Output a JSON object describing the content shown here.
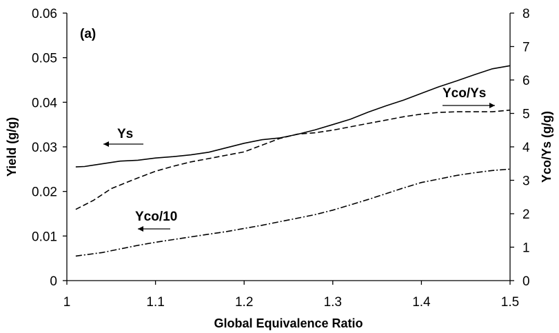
{
  "chart_data": {
    "type": "line",
    "panel_label": "(a)",
    "xlabel": "Global Equivalence Ratio",
    "ylabel_left": "Yield (g/g)",
    "ylabel_right": "Yco/Ys (g/g)",
    "xlim": [
      1.0,
      1.5
    ],
    "ylim_left": [
      0,
      0.06
    ],
    "ylim_right": [
      0,
      8
    ],
    "x_ticks": [
      "1",
      "1.1",
      "1.2",
      "1.3",
      "1.4",
      "1.5"
    ],
    "y_left_ticks": [
      "0",
      "0.01",
      "0.02",
      "0.03",
      "0.04",
      "0.05",
      "0.06"
    ],
    "y_right_ticks": [
      "0",
      "1",
      "2",
      "3",
      "4",
      "5",
      "6",
      "7",
      "8"
    ],
    "grid": false,
    "legend": "none",
    "series": [
      {
        "name": "Ys",
        "axis": "left",
        "style": "solid",
        "x": [
          1.01,
          1.02,
          1.04,
          1.06,
          1.08,
          1.1,
          1.12,
          1.14,
          1.16,
          1.18,
          1.2,
          1.22,
          1.24,
          1.26,
          1.28,
          1.3,
          1.32,
          1.34,
          1.36,
          1.38,
          1.4,
          1.42,
          1.44,
          1.46,
          1.48,
          1.5
        ],
        "values": [
          0.0255,
          0.0256,
          0.0262,
          0.0268,
          0.027,
          0.0275,
          0.0278,
          0.0282,
          0.0288,
          0.0298,
          0.0308,
          0.0316,
          0.032,
          0.0328,
          0.0338,
          0.035,
          0.0362,
          0.0378,
          0.0392,
          0.0405,
          0.042,
          0.0435,
          0.0448,
          0.0462,
          0.0475,
          0.0482
        ]
      },
      {
        "name": "Yco/Ys",
        "axis": "right",
        "style": "dashed",
        "x": [
          1.01,
          1.03,
          1.05,
          1.08,
          1.1,
          1.12,
          1.14,
          1.16,
          1.18,
          1.2,
          1.22,
          1.24,
          1.26,
          1.28,
          1.3,
          1.32,
          1.34,
          1.36,
          1.38,
          1.4,
          1.42,
          1.44,
          1.46,
          1.48,
          1.5
        ],
        "values": [
          2.13,
          2.4,
          2.75,
          3.07,
          3.27,
          3.42,
          3.55,
          3.65,
          3.75,
          3.85,
          4.05,
          4.25,
          4.38,
          4.42,
          4.5,
          4.6,
          4.7,
          4.8,
          4.9,
          4.98,
          5.03,
          5.05,
          5.05,
          5.05,
          5.1
        ]
      },
      {
        "name": "Yco/10",
        "axis": "left",
        "style": "dashdot",
        "x": [
          1.01,
          1.04,
          1.06,
          1.08,
          1.1,
          1.12,
          1.14,
          1.16,
          1.18,
          1.2,
          1.22,
          1.24,
          1.26,
          1.28,
          1.3,
          1.32,
          1.34,
          1.36,
          1.38,
          1.4,
          1.42,
          1.44,
          1.46,
          1.48,
          1.5
        ],
        "values": [
          0.0055,
          0.0063,
          0.0071,
          0.0079,
          0.0086,
          0.0092,
          0.0098,
          0.0104,
          0.011,
          0.0117,
          0.0124,
          0.0132,
          0.014,
          0.0148,
          0.0158,
          0.017,
          0.0182,
          0.0195,
          0.0208,
          0.022,
          0.0228,
          0.0236,
          0.0242,
          0.0247,
          0.025
        ]
      }
    ],
    "annotations": [
      {
        "text": "Ys",
        "arrow": "left"
      },
      {
        "text": "Yco/Ys",
        "arrow": "right"
      },
      {
        "text": "Yco/10",
        "arrow": "left"
      }
    ]
  }
}
